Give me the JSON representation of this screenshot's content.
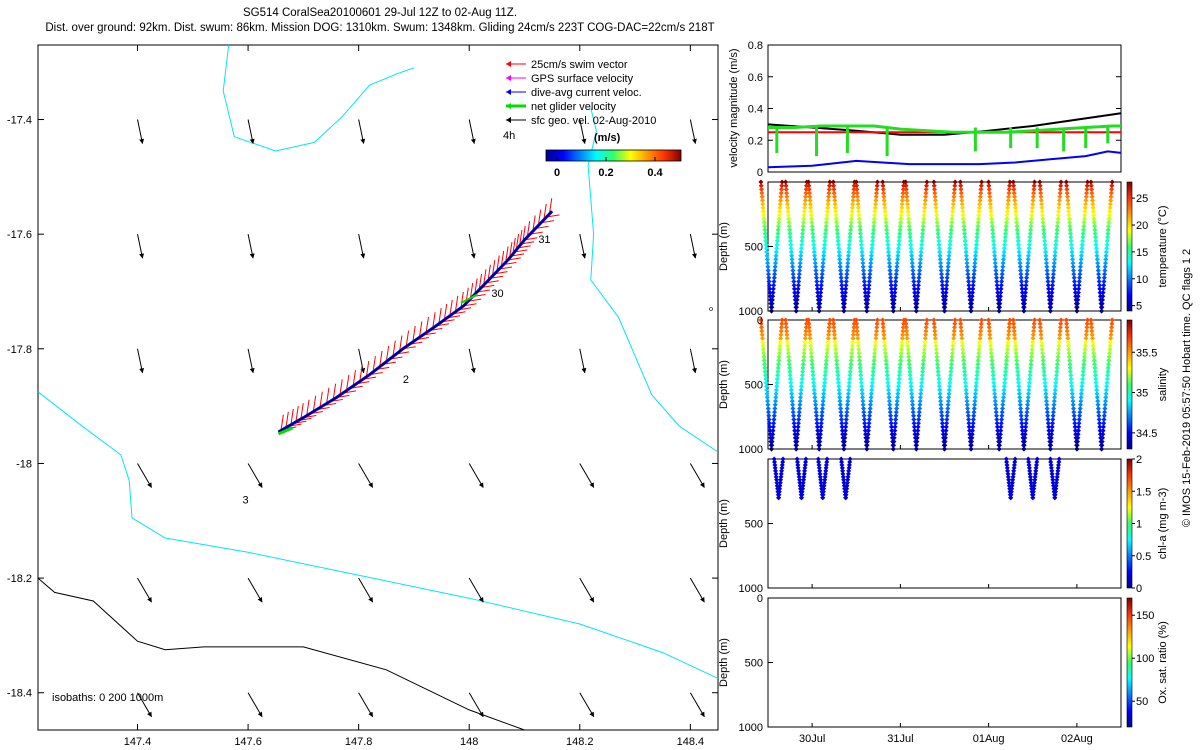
{
  "header": {
    "line1": "SG514 CoralSea20100601 29-Jul 12Z to 02-Aug 11Z.",
    "line2": "Dist. over ground: 92km. Dist. swum: 86km. Mission DOG: 1310km. Swum: 1348km. Gliding 24cm/s 223T COG-DAC=22cm/s 218T"
  },
  "side_note": "© IMOS 15-Feb-2019 05:57:50 Hobart time. QC flags 1 2",
  "colors": {
    "swim": "#ff0000",
    "gps": "#ff00ff",
    "dac": "#0000ff",
    "net": "#00dd00",
    "sfc": "#000000",
    "isobath_0": "#00e5ff",
    "isobath_200": "#00e5ff",
    "isobath_1000": "#000000",
    "vel_black": "#000000",
    "vel_red": "#ff0000",
    "vel_green": "#22dd22",
    "vel_blue": "#0000ff"
  },
  "chart_data": [
    {
      "type": "scatter",
      "title": "",
      "xlabel": "",
      "ylabel": "",
      "xlim": [
        147.22,
        148.45
      ],
      "ylim": [
        -18.465,
        -17.27
      ],
      "x_ticks": [
        "147.4",
        "147.6",
        "147.8",
        "148",
        "148.2",
        "148.4"
      ],
      "x_tick_values": [
        147.4,
        147.6,
        147.8,
        148.0,
        148.2,
        148.4
      ],
      "y_ticks": [
        "-17.4",
        "-17.6",
        "-17.8",
        "-18",
        "-18.2",
        "-18.4"
      ],
      "y_tick_values": [
        -17.4,
        -17.6,
        -17.8,
        -18.0,
        -18.2,
        -18.4
      ],
      "legend": {
        "entries": [
          "25cm/s swim vector",
          "GPS surface velocity",
          "dive-avg current veloc.",
          "net glider velocity",
          "sfc geo. vel. 02-Aug-2010"
        ],
        "note": "4h",
        "colorbar_title": "(m/s)",
        "colorbar_ticks": [
          "0",
          "0.2",
          "0.4"
        ],
        "placement": "top-right"
      },
      "track": [
        [
          147.655,
          -17.945
        ],
        [
          147.7,
          -17.92
        ],
        [
          147.76,
          -17.885
        ],
        [
          147.82,
          -17.845
        ],
        [
          147.88,
          -17.8
        ],
        [
          147.94,
          -17.76
        ],
        [
          147.99,
          -17.725
        ],
        [
          148.03,
          -17.685
        ],
        [
          148.07,
          -17.645
        ],
        [
          148.1,
          -17.61
        ],
        [
          148.15,
          -17.56
        ]
      ],
      "day_labels": [
        {
          "text": "31",
          "x": 148.125,
          "y": -17.615
        },
        {
          "text": "30",
          "x": 148.04,
          "y": -17.71
        },
        {
          "text": "2",
          "x": 147.88,
          "y": -17.86
        },
        {
          "text": "3",
          "x": 147.59,
          "y": -18.07
        }
      ],
      "isobath_note": "isobaths: 0   200  1000m",
      "isobath_0": [
        [
          147.565,
          -17.27
        ],
        [
          147.555,
          -17.35
        ],
        [
          147.575,
          -17.43
        ],
        [
          147.65,
          -17.455
        ],
        [
          147.72,
          -17.44
        ],
        [
          147.77,
          -17.395
        ],
        [
          147.82,
          -17.34
        ],
        [
          147.87,
          -17.32
        ],
        [
          147.9,
          -17.31
        ]
      ],
      "isobath_200": [
        [
          147.22,
          -17.875
        ],
        [
          147.3,
          -17.935
        ],
        [
          147.37,
          -17.985
        ],
        [
          147.385,
          -18.03
        ],
        [
          147.39,
          -18.095
        ],
        [
          147.45,
          -18.13
        ],
        [
          147.6,
          -18.155
        ],
        [
          147.8,
          -18.195
        ],
        [
          148.0,
          -18.235
        ],
        [
          148.2,
          -18.28
        ],
        [
          148.35,
          -18.33
        ],
        [
          148.45,
          -18.375
        ]
      ],
      "isobath_200b": [
        [
          148.22,
          -17.38
        ],
        [
          148.23,
          -17.42
        ],
        [
          148.215,
          -17.48
        ],
        [
          148.225,
          -17.6
        ],
        [
          148.22,
          -17.68
        ],
        [
          148.27,
          -17.745
        ],
        [
          148.31,
          -17.835
        ],
        [
          148.33,
          -17.88
        ],
        [
          148.38,
          -17.935
        ],
        [
          148.45,
          -17.98
        ]
      ],
      "isobath_1000": [
        [
          147.22,
          -18.2
        ],
        [
          147.25,
          -18.225
        ],
        [
          147.32,
          -18.24
        ],
        [
          147.4,
          -18.31
        ],
        [
          147.45,
          -18.325
        ],
        [
          147.52,
          -18.32
        ],
        [
          147.7,
          -18.32
        ],
        [
          147.85,
          -18.36
        ],
        [
          148.0,
          -18.43
        ],
        [
          148.1,
          -18.465
        ]
      ],
      "sfc_geo_vel_points": [
        [
          147.4,
          -17.4
        ],
        [
          147.6,
          -17.4
        ],
        [
          147.8,
          -17.4
        ],
        [
          148.0,
          -17.4
        ],
        [
          148.2,
          -17.4
        ],
        [
          148.4,
          -17.4
        ],
        [
          147.4,
          -17.6
        ],
        [
          147.6,
          -17.6
        ],
        [
          147.8,
          -17.6
        ],
        [
          148.0,
          -17.6
        ],
        [
          148.2,
          -17.6
        ],
        [
          148.4,
          -17.6
        ],
        [
          147.4,
          -17.8
        ],
        [
          147.6,
          -17.8
        ],
        [
          147.8,
          -17.8
        ],
        [
          148.0,
          -17.8
        ],
        [
          148.2,
          -17.8
        ],
        [
          148.4,
          -17.8
        ],
        [
          147.4,
          -18.0
        ],
        [
          147.6,
          -18.0
        ],
        [
          147.8,
          -18.0
        ],
        [
          148.0,
          -18.0
        ],
        [
          148.2,
          -18.0
        ],
        [
          148.4,
          -18.0
        ],
        [
          147.4,
          -18.2
        ],
        [
          147.6,
          -18.2
        ],
        [
          147.8,
          -18.2
        ],
        [
          148.0,
          -18.2
        ],
        [
          148.2,
          -18.2
        ],
        [
          148.4,
          -18.2
        ],
        [
          147.4,
          -18.4
        ],
        [
          147.6,
          -18.4
        ],
        [
          147.8,
          -18.4
        ],
        [
          148.0,
          -18.4
        ],
        [
          148.2,
          -18.4
        ],
        [
          148.4,
          -18.4
        ]
      ]
    },
    {
      "type": "line",
      "ylabel": "velocity magnitude (m/s)",
      "ylim": [
        0,
        0.8
      ],
      "y_ticks": [
        "0",
        "0.2",
        "0.4",
        "0.6",
        "0.8"
      ],
      "xlim": [
        0,
        4
      ],
      "series": [
        {
          "color": "black",
          "x": [
            0,
            0.5,
            1.0,
            1.5,
            2.0,
            2.5,
            3.0,
            3.5,
            4.0
          ],
          "values": [
            0.3,
            0.28,
            0.26,
            0.235,
            0.235,
            0.26,
            0.29,
            0.33,
            0.37
          ]
        },
        {
          "color": "red",
          "x": [
            0,
            4.0
          ],
          "values": [
            0.25,
            0.25
          ]
        },
        {
          "color": "green",
          "x": [
            0,
            0.3,
            0.6,
            0.9,
            1.2,
            1.5,
            1.8,
            2.1,
            2.4,
            2.7,
            3.0,
            3.3,
            3.6,
            3.9,
            4.0
          ],
          "values": [
            0.28,
            0.28,
            0.29,
            0.29,
            0.29,
            0.27,
            0.26,
            0.25,
            0.25,
            0.25,
            0.26,
            0.27,
            0.28,
            0.29,
            0.29
          ]
        },
        {
          "color": "blue",
          "x": [
            0,
            0.5,
            1.0,
            1.3,
            1.6,
            2.0,
            2.4,
            2.8,
            3.2,
            3.6,
            3.85,
            4.0
          ],
          "values": [
            0.03,
            0.04,
            0.07,
            0.06,
            0.05,
            0.05,
            0.05,
            0.06,
            0.08,
            0.1,
            0.13,
            0.12
          ]
        }
      ],
      "green_drop_x": [
        0.1,
        0.55,
        0.9,
        1.35,
        2.35,
        2.75,
        3.05,
        3.35,
        3.6,
        3.85
      ],
      "green_drop_values": [
        0.12,
        0.1,
        0.12,
        0.1,
        0.13,
        0.15,
        0.15,
        0.13,
        0.15,
        0.18
      ]
    },
    {
      "type": "scatter",
      "ylabel": "Depth (m)",
      "colorbar_label": "temperature (°C)",
      "colorbar_ticks": [
        "5",
        "10",
        "15",
        "20",
        "25"
      ],
      "ylim": [
        1000,
        0
      ],
      "y_ticks": [
        "500",
        "1000"
      ],
      "profile_apex_x": [
        0.04,
        0.32,
        0.58,
        0.86,
        1.12,
        1.42,
        1.68,
        2.0,
        2.3,
        2.62,
        2.9,
        3.2,
        3.5,
        3.78
      ],
      "profile_depths": [
        1000,
        1000,
        1000,
        1000,
        1000,
        1000,
        1000,
        1000,
        1000,
        1000,
        1000,
        1000,
        1000,
        1000
      ],
      "color_range": [
        4,
        28
      ]
    },
    {
      "type": "scatter",
      "ylabel": "Depth (m)",
      "colorbar_label": "salinity",
      "colorbar_ticks": [
        "34.5",
        "35",
        "35.5"
      ],
      "ylim": [
        1000,
        0
      ],
      "y_ticks": [
        "0",
        "500",
        "1000"
      ],
      "profile_apex_x": [
        0.04,
        0.32,
        0.58,
        0.86,
        1.12,
        1.42,
        1.68,
        2.0,
        2.3,
        2.62,
        2.9,
        3.2,
        3.5,
        3.78
      ],
      "profile_depths": [
        1000,
        1000,
        1000,
        1000,
        1000,
        1000,
        1000,
        1000,
        1000,
        1000,
        1000,
        1000,
        1000,
        1000
      ],
      "color_range": [
        34.3,
        35.9
      ]
    },
    {
      "type": "scatter",
      "ylabel": "Depth (m)",
      "colorbar_label": "chl-a (mg m-3)",
      "colorbar_ticks": [
        "0",
        "0.5",
        "1",
        "1.5",
        "2"
      ],
      "ylim": [
        1000,
        0
      ],
      "y_ticks": [
        "500",
        "1000"
      ],
      "profile_apex_x": [
        0.12,
        0.38,
        0.62,
        0.88,
        2.75,
        3.0,
        3.25
      ],
      "profile_depths": [
        300,
        300,
        300,
        300,
        300,
        300,
        300
      ]
    },
    {
      "type": "scatter",
      "ylabel": "Depth (m)",
      "colorbar_label": "Ox. sat. ratio (%)",
      "colorbar_ticks": [
        "50",
        "100",
        "150"
      ],
      "ylim": [
        1000,
        0
      ],
      "y_ticks": [
        "0",
        "500",
        "1000"
      ],
      "x_ticks": [
        "30Jul",
        "31Jul",
        "01Aug",
        "02Aug"
      ],
      "x_tick_values": [
        0.5,
        1.5,
        2.5,
        3.5
      ]
    }
  ]
}
